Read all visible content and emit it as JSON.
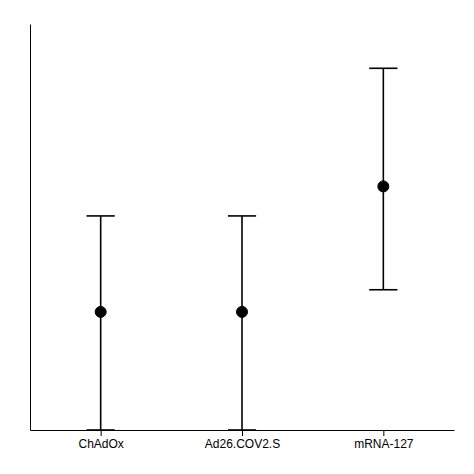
{
  "chart_data": {
    "type": "scatter",
    "categories": [
      "ChAdOx",
      "Ad26.COV2.S",
      "mRNA-127"
    ],
    "values": [
      0.22,
      0.22,
      0.56
    ],
    "ci_low": [
      -0.1,
      -0.1,
      0.28
    ],
    "ci_high": [
      0.48,
      0.48,
      0.88
    ],
    "color": "#000000",
    "ylim": [
      -0.1,
      1.0
    ],
    "grid": false,
    "tick_labels": "x"
  }
}
